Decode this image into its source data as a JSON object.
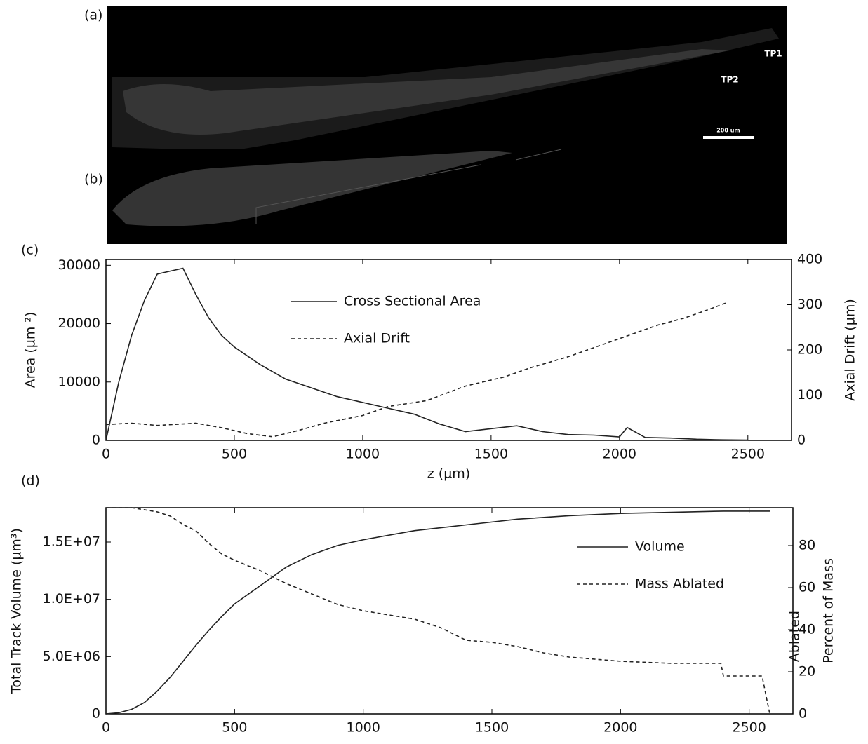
{
  "panels": {
    "a": "(a)",
    "b": "(b)",
    "tp1": "TP1",
    "tp2": "TP2",
    "scale_bar": "200 um"
  },
  "chart_data": [
    {
      "type": "line",
      "panel_label": "(c)",
      "xlabel": "z (µm)",
      "ylabel": "Area (µm ²)",
      "y2label": [
        "Axial Drift (µm)"
      ],
      "xlim": [
        0,
        2670
      ],
      "xticks": [
        0,
        500,
        1000,
        1500,
        2000,
        2500
      ],
      "ylim": [
        0,
        31000
      ],
      "yticks": [
        0,
        10000,
        20000,
        30000
      ],
      "y2lim": [
        0,
        400
      ],
      "y2ticks": [
        0,
        100,
        200,
        300,
        400
      ],
      "series": [
        {
          "name": "Cross Sectional Area",
          "color": "#222222",
          "linestyle": "solid",
          "x": [
            0,
            50,
            100,
            150,
            200,
            250,
            300,
            350,
            400,
            450,
            500,
            600,
            700,
            800,
            900,
            1000,
            1100,
            1200,
            1300,
            1400,
            1500,
            1600,
            1700,
            1800,
            1900,
            2000,
            2030,
            2100,
            2200,
            2300,
            2400,
            2500
          ],
          "values": [
            0,
            10000,
            18000,
            24000,
            28500,
            29000,
            29500,
            25000,
            21000,
            18000,
            16000,
            13000,
            10500,
            9000,
            7500,
            6500,
            5500,
            4500,
            2800,
            1500,
            2000,
            2500,
            1500,
            1000,
            900,
            600,
            2200,
            500,
            400,
            200,
            100,
            50
          ]
        },
        {
          "name": "Axial Drift",
          "color": "#222222",
          "linestyle": "dashed",
          "axis": "y2",
          "x": [
            0,
            100,
            200,
            350,
            450,
            550,
            650,
            750,
            850,
            1000,
            1100,
            1250,
            1400,
            1550,
            1650,
            1800,
            2000,
            2150,
            2250,
            2350,
            2420
          ],
          "values": [
            35,
            38,
            33,
            38,
            28,
            15,
            8,
            22,
            38,
            55,
            75,
            88,
            120,
            140,
            160,
            185,
            225,
            255,
            270,
            290,
            305
          ]
        }
      ]
    },
    {
      "type": "line",
      "panel_label": "(d)",
      "xlabel": "z (µm)",
      "ylabel": "Total Track  Volume (µm³)",
      "y2label": [
        "Percent of Mass",
        "Ablated"
      ],
      "xlim": [
        0,
        2670
      ],
      "xticks": [
        0,
        500,
        1000,
        1500,
        2000,
        2500
      ],
      "ylim": [
        0,
        18000000
      ],
      "yticks": [
        0,
        {
          "value": 5000000,
          "label": "5.0E+06"
        },
        {
          "value": 10000000,
          "label": "1.0E+07"
        },
        {
          "value": 15000000,
          "label": "1.5E+07"
        }
      ],
      "y2lim": [
        0,
        98
      ],
      "y2ticks": [
        0,
        20,
        40,
        60,
        80
      ],
      "series": [
        {
          "name": "Volume",
          "color": "#222222",
          "linestyle": "solid",
          "x": [
            0,
            50,
            100,
            150,
            200,
            250,
            300,
            350,
            400,
            450,
            500,
            600,
            700,
            800,
            900,
            1000,
            1200,
            1400,
            1600,
            1800,
            2000,
            2200,
            2400,
            2580
          ],
          "values": [
            0,
            100000,
            400000,
            1000000,
            2000000,
            3200000,
            4600000,
            6000000,
            7300000,
            8500000,
            9600000,
            11200000,
            12800000,
            13900000,
            14700000,
            15200000,
            16000000,
            16500000,
            17000000,
            17300000,
            17500000,
            17600000,
            17700000,
            17700000
          ]
        },
        {
          "name": "Mass Ablated",
          "color": "#222222",
          "linestyle": "dashed",
          "axis": "y2",
          "x": [
            0,
            100,
            200,
            250,
            300,
            350,
            400,
            450,
            500,
            600,
            700,
            800,
            900,
            1000,
            1100,
            1200,
            1300,
            1400,
            1500,
            1600,
            1700,
            1800,
            1900,
            2000,
            2200,
            2390,
            2400,
            2550,
            2580
          ],
          "values": [
            98,
            98,
            96,
            94,
            90,
            87,
            81,
            76,
            73,
            68,
            62,
            57,
            52,
            49,
            47,
            45,
            41,
            35,
            34,
            32,
            29,
            27,
            26,
            25,
            24,
            24,
            18,
            18,
            0
          ]
        }
      ]
    }
  ]
}
